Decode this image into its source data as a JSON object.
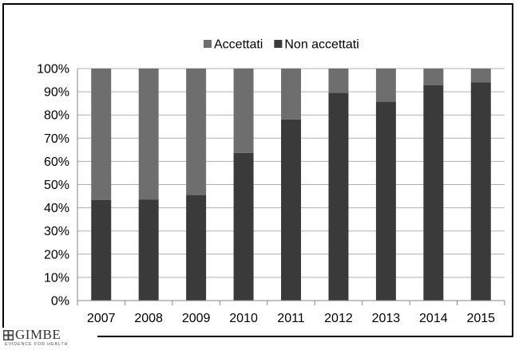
{
  "chart_data": {
    "type": "bar",
    "stacked": true,
    "categories": [
      "2007",
      "2008",
      "2009",
      "2010",
      "2011",
      "2012",
      "2013",
      "2014",
      "2015"
    ],
    "series": [
      {
        "name": "Non accettati",
        "color": "#3a3a3a",
        "values": [
          43.3,
          43.6,
          45.5,
          63.6,
          78.1,
          89.5,
          85.7,
          92.9,
          94.0
        ]
      },
      {
        "name": "Accettati",
        "color": "#6e6e6e",
        "values": [
          56.7,
          56.4,
          54.5,
          36.4,
          21.9,
          10.5,
          14.3,
          7.1,
          6.0
        ]
      }
    ],
    "legend_order": [
      "Accettati",
      "Non accettati"
    ],
    "legend_position": "top-center",
    "ylim": [
      0,
      100
    ],
    "yticks": [
      0,
      10,
      20,
      30,
      40,
      50,
      60,
      70,
      80,
      90,
      100
    ],
    "ytick_suffix": "%",
    "grid": "horizontal",
    "title": "",
    "xlabel": "",
    "ylabel": ""
  },
  "logo": {
    "name": "GIMBE",
    "tagline": "EVIDENCE FOR HEALTH",
    "icon": "gimbe-grid-icon"
  }
}
